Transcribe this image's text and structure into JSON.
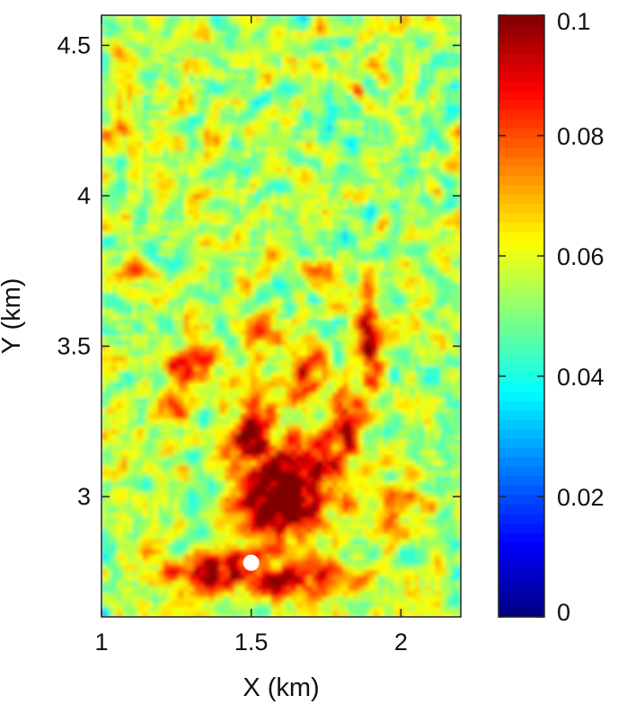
{
  "chart_data": {
    "type": "heatmap",
    "title": "",
    "xlabel": "X (km)",
    "ylabel": "Y (km)",
    "xlim": [
      1.0,
      2.2
    ],
    "ylim": [
      2.6,
      4.6
    ],
    "x_ticks": [
      1,
      1.5,
      2
    ],
    "x_tick_labels": [
      "1",
      "1.5",
      "2"
    ],
    "y_ticks": [
      3,
      3.5,
      4,
      4.5
    ],
    "y_tick_labels": [
      "3",
      "3.5",
      "4",
      "4.5"
    ],
    "colorbar": {
      "colormap": "jet",
      "range": [
        0,
        0.1
      ],
      "ticks": [
        0,
        0.02,
        0.04,
        0.06,
        0.08,
        0.1
      ],
      "tick_labels": [
        "0",
        "0.02",
        "0.04",
        "0.06",
        "0.08",
        "0.1"
      ],
      "placement": "right"
    },
    "background_level": 0.055,
    "high_regions": [
      {
        "x": 1.6,
        "y": 3.0,
        "sx": 0.09,
        "sy": 0.12,
        "value": 0.12
      },
      {
        "x": 1.5,
        "y": 3.2,
        "sx": 0.06,
        "sy": 0.1,
        "value": 0.1
      },
      {
        "x": 1.75,
        "y": 3.1,
        "sx": 0.07,
        "sy": 0.1,
        "value": 0.095
      },
      {
        "x": 1.9,
        "y": 3.5,
        "sx": 0.025,
        "sy": 0.1,
        "value": 0.1
      },
      {
        "x": 1.4,
        "y": 2.75,
        "sx": 0.12,
        "sy": 0.05,
        "value": 0.1
      },
      {
        "x": 1.65,
        "y": 2.72,
        "sx": 0.12,
        "sy": 0.05,
        "value": 0.09
      },
      {
        "x": 1.3,
        "y": 3.45,
        "sx": 0.06,
        "sy": 0.05,
        "value": 0.085
      },
      {
        "x": 1.68,
        "y": 3.4,
        "sx": 0.05,
        "sy": 0.06,
        "value": 0.09
      },
      {
        "x": 1.82,
        "y": 3.25,
        "sx": 0.05,
        "sy": 0.1,
        "value": 0.085
      },
      {
        "x": 1.25,
        "y": 3.3,
        "sx": 0.04,
        "sy": 0.06,
        "value": 0.08
      },
      {
        "x": 1.98,
        "y": 2.95,
        "sx": 0.05,
        "sy": 0.08,
        "value": 0.08
      },
      {
        "x": 1.05,
        "y": 4.22,
        "sx": 0.03,
        "sy": 0.04,
        "value": 0.085
      },
      {
        "x": 1.1,
        "y": 3.75,
        "sx": 0.03,
        "sy": 0.03,
        "value": 0.08
      },
      {
        "x": 1.86,
        "y": 4.35,
        "sx": 0.02,
        "sy": 0.02,
        "value": 0.085
      },
      {
        "x": 1.55,
        "y": 3.55,
        "sx": 0.05,
        "sy": 0.04,
        "value": 0.075
      },
      {
        "x": 1.72,
        "y": 3.75,
        "sx": 0.04,
        "sy": 0.03,
        "value": 0.078
      }
    ],
    "marker": {
      "x": 1.5,
      "y": 2.78,
      "shape": "circle",
      "color": "#ffffff"
    }
  }
}
